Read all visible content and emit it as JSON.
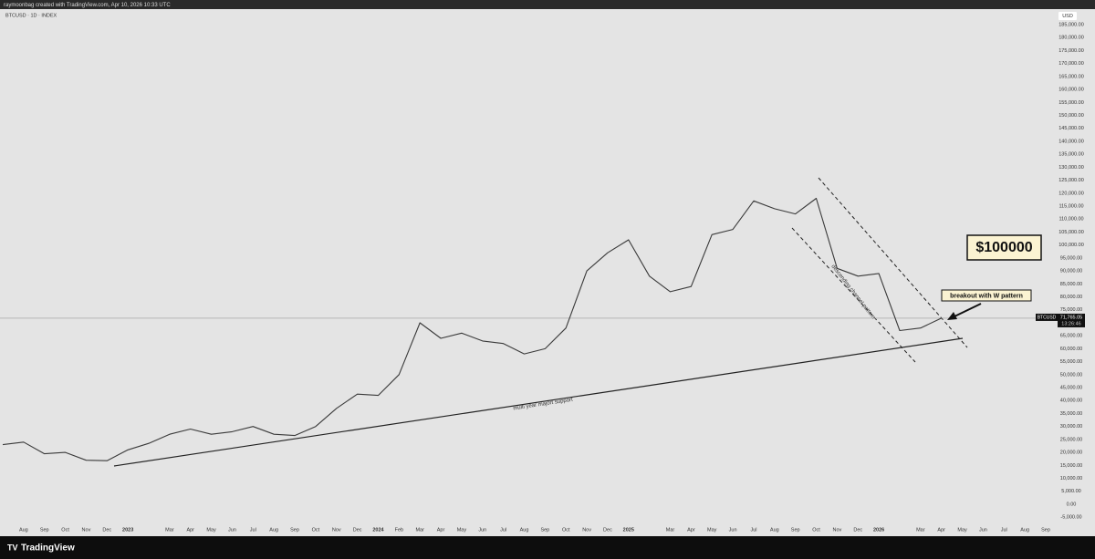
{
  "page": {
    "attribution": "raymoonbag created with TradingView.com, Apr 10, 2026 10:33 UTC",
    "brand": "TradingView"
  },
  "chart_data": {
    "type": "line",
    "title": "BTCUSD · 1D · INDEX",
    "currency": "USD",
    "color": "#3a3a3a",
    "x": [
      "2022-07",
      "2022-08",
      "2022-09",
      "2022-10",
      "2022-11",
      "2022-12",
      "2023-01",
      "2023-02",
      "2023-03",
      "2023-04",
      "2023-05",
      "2023-06",
      "2023-07",
      "2023-08",
      "2023-09",
      "2023-10",
      "2023-11",
      "2023-12",
      "2024-01",
      "2024-02",
      "2024-03",
      "2024-04",
      "2024-05",
      "2024-06",
      "2024-07",
      "2024-08",
      "2024-09",
      "2024-10",
      "2024-11",
      "2024-12",
      "2025-01",
      "2025-02",
      "2025-03",
      "2025-04",
      "2025-05",
      "2025-06",
      "2025-07",
      "2025-08",
      "2025-09",
      "2025-10",
      "2025-11",
      "2025-12",
      "2026-01",
      "2026-02",
      "2026-03",
      "2026-04"
    ],
    "series": [
      {
        "values": [
          23000,
          24000,
          19500,
          20000,
          17000,
          16800,
          21000,
          23500,
          27000,
          29000,
          27000,
          28000,
          30000,
          27000,
          26500,
          30000,
          37000,
          42500,
          42000,
          50000,
          70000,
          64000,
          66000,
          63000,
          62000,
          58000,
          60000,
          68000,
          90000,
          97000,
          102000,
          88000,
          82000,
          84000,
          104000,
          106000,
          117000,
          114000,
          112000,
          118000,
          91000,
          88000,
          89000,
          67000,
          68000,
          71800
        ]
      }
    ],
    "xlim": [
      "2022-07",
      "2026-09"
    ],
    "ylim": [
      -7740,
      190980
    ],
    "xticks": [
      {
        "value": "2022-08",
        "label": "Aug"
      },
      {
        "value": "2022-09",
        "label": "Sep"
      },
      {
        "value": "2022-10",
        "label": "Oct"
      },
      {
        "value": "2022-11",
        "label": "Nov"
      },
      {
        "value": "2022-12",
        "label": "Dec"
      },
      {
        "value": "2023-01",
        "label": "2023"
      },
      {
        "value": "2023-03",
        "label": "Mar"
      },
      {
        "value": "2023-04",
        "label": "Apr"
      },
      {
        "value": "2023-05",
        "label": "May"
      },
      {
        "value": "2023-06",
        "label": "Jun"
      },
      {
        "value": "2023-07",
        "label": "Jul"
      },
      {
        "value": "2023-08",
        "label": "Aug"
      },
      {
        "value": "2023-09",
        "label": "Sep"
      },
      {
        "value": "2023-10",
        "label": "Oct"
      },
      {
        "value": "2023-11",
        "label": "Nov"
      },
      {
        "value": "2023-12",
        "label": "Dec"
      },
      {
        "value": "2024-01",
        "label": "2024"
      },
      {
        "value": "2024-02",
        "label": "Feb"
      },
      {
        "value": "2024-03",
        "label": "Mar"
      },
      {
        "value": "2024-04",
        "label": "Apr"
      },
      {
        "value": "2024-05",
        "label": "May"
      },
      {
        "value": "2024-06",
        "label": "Jun"
      },
      {
        "value": "2024-07",
        "label": "Jul"
      },
      {
        "value": "2024-08",
        "label": "Aug"
      },
      {
        "value": "2024-09",
        "label": "Sep"
      },
      {
        "value": "2024-10",
        "label": "Oct"
      },
      {
        "value": "2024-11",
        "label": "Nov"
      },
      {
        "value": "2024-12",
        "label": "Dec"
      },
      {
        "value": "2025-01",
        "label": "2025"
      },
      {
        "value": "2025-03",
        "label": "Mar"
      },
      {
        "value": "2025-04",
        "label": "Apr"
      },
      {
        "value": "2025-05",
        "label": "May"
      },
      {
        "value": "2025-06",
        "label": "Jun"
      },
      {
        "value": "2025-07",
        "label": "Jul"
      },
      {
        "value": "2025-08",
        "label": "Aug"
      },
      {
        "value": "2025-09",
        "label": "Sep"
      },
      {
        "value": "2025-10",
        "label": "Oct"
      },
      {
        "value": "2025-11",
        "label": "Nov"
      },
      {
        "value": "2025-12",
        "label": "Dec"
      },
      {
        "value": "2026-01",
        "label": "2026"
      },
      {
        "value": "2026-03",
        "label": "Mar"
      },
      {
        "value": "2026-04",
        "label": "Apr"
      },
      {
        "value": "2026-05",
        "label": "May"
      },
      {
        "value": "2026-06",
        "label": "Jun"
      },
      {
        "value": "2026-07",
        "label": "Jul"
      },
      {
        "value": "2026-08",
        "label": "Aug"
      },
      {
        "value": "2026-09",
        "label": "Sep"
      }
    ],
    "yticks": [
      {
        "value": 185000,
        "label": "185,000.00"
      },
      {
        "value": 180000,
        "label": "180,000.00"
      },
      {
        "value": 175000,
        "label": "175,000.00"
      },
      {
        "value": 170000,
        "label": "170,000.00"
      },
      {
        "value": 165000,
        "label": "165,000.00"
      },
      {
        "value": 160000,
        "label": "160,000.00"
      },
      {
        "value": 155000,
        "label": "155,000.00"
      },
      {
        "value": 150000,
        "label": "150,000.00"
      },
      {
        "value": 145000,
        "label": "145,000.00"
      },
      {
        "value": 140000,
        "label": "140,000.00"
      },
      {
        "value": 135000,
        "label": "135,000.00"
      },
      {
        "value": 130000,
        "label": "130,000.00"
      },
      {
        "value": 125000,
        "label": "125,000.00"
      },
      {
        "value": 120000,
        "label": "120,000.00"
      },
      {
        "value": 115000,
        "label": "115,000.00"
      },
      {
        "value": 110000,
        "label": "110,000.00"
      },
      {
        "value": 105000,
        "label": "105,000.00"
      },
      {
        "value": 100000,
        "label": "100,000.00"
      },
      {
        "value": 95000,
        "label": "95,000.00"
      },
      {
        "value": 90000,
        "label": "90,000.00"
      },
      {
        "value": 85000,
        "label": "85,000.00"
      },
      {
        "value": 80000,
        "label": "80,000.00"
      },
      {
        "value": 75000,
        "label": "75,000.00"
      },
      {
        "value": 70000,
        "label": "70,000.00"
      },
      {
        "value": 65000,
        "label": "65,000.00"
      },
      {
        "value": 60000,
        "label": "60,000.00"
      },
      {
        "value": 55000,
        "label": "55,000.00"
      },
      {
        "value": 50000,
        "label": "50,000.00"
      },
      {
        "value": 45000,
        "label": "45,000.00"
      },
      {
        "value": 40000,
        "label": "40,000.00"
      },
      {
        "value": 35000,
        "label": "35,000.00"
      },
      {
        "value": 30000,
        "label": "30,000.00"
      },
      {
        "value": 25000,
        "label": "25,000.00"
      },
      {
        "value": 20000,
        "label": "20,000.00"
      },
      {
        "value": 15000,
        "label": "15,000.00"
      },
      {
        "value": 10000,
        "label": "10,000.00"
      },
      {
        "value": 5000,
        "label": "5,000.00"
      },
      {
        "value": 0,
        "label": "0.00"
      },
      {
        "value": -5000,
        "label": "-5,000.00"
      }
    ],
    "last_price": {
      "symbol": "BTCUSD",
      "value": 71765.05,
      "label": "71,765.05",
      "countdown": "13:26:46"
    },
    "annotations": [
      "$100000",
      "breakout with W pattern",
      "multi year majort support",
      "descending channel pattern"
    ]
  }
}
